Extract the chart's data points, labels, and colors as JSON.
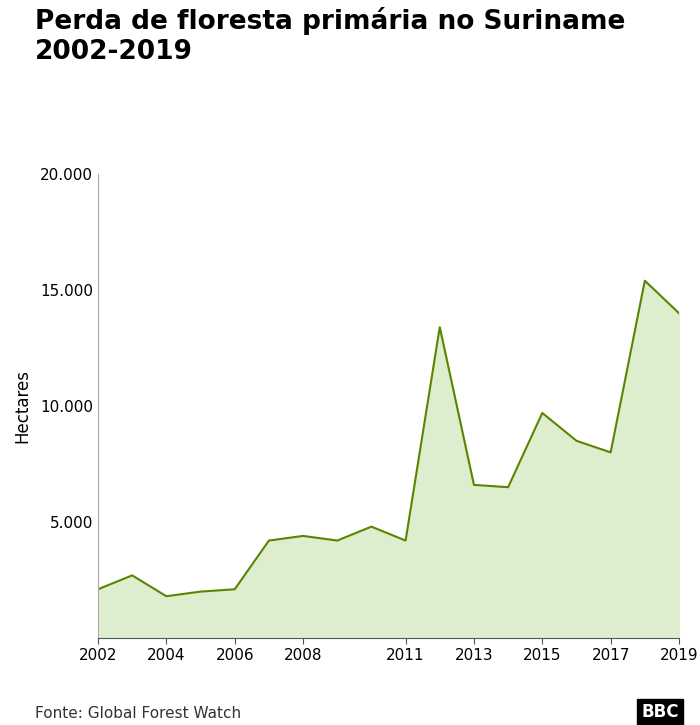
{
  "title": "Perda de floresta primária no Suriname 2002-2019",
  "ylabel": "Hectares",
  "source": "Fonte: Global Forest Watch",
  "bbc_label": "BBC",
  "years": [
    2002,
    2003,
    2004,
    2005,
    2006,
    2007,
    2008,
    2009,
    2010,
    2011,
    2012,
    2013,
    2014,
    2015,
    2016,
    2017,
    2018,
    2019
  ],
  "values": [
    2100,
    2700,
    1800,
    2000,
    2100,
    4200,
    4400,
    4200,
    4800,
    4200,
    13400,
    6600,
    6500,
    9700,
    8500,
    8000,
    15400,
    14000
  ],
  "line_color": "#5a8500",
  "fill_color": "#ddeece",
  "background_color": "#ffffff",
  "ylim": [
    0,
    20000
  ],
  "yticks": [
    0,
    5000,
    10000,
    15000,
    20000
  ],
  "xticks": [
    2002,
    2004,
    2006,
    2008,
    2011,
    2013,
    2015,
    2017,
    2019
  ],
  "title_fontsize": 19,
  "axis_fontsize": 11,
  "source_fontsize": 11,
  "ylabel_fontsize": 12
}
